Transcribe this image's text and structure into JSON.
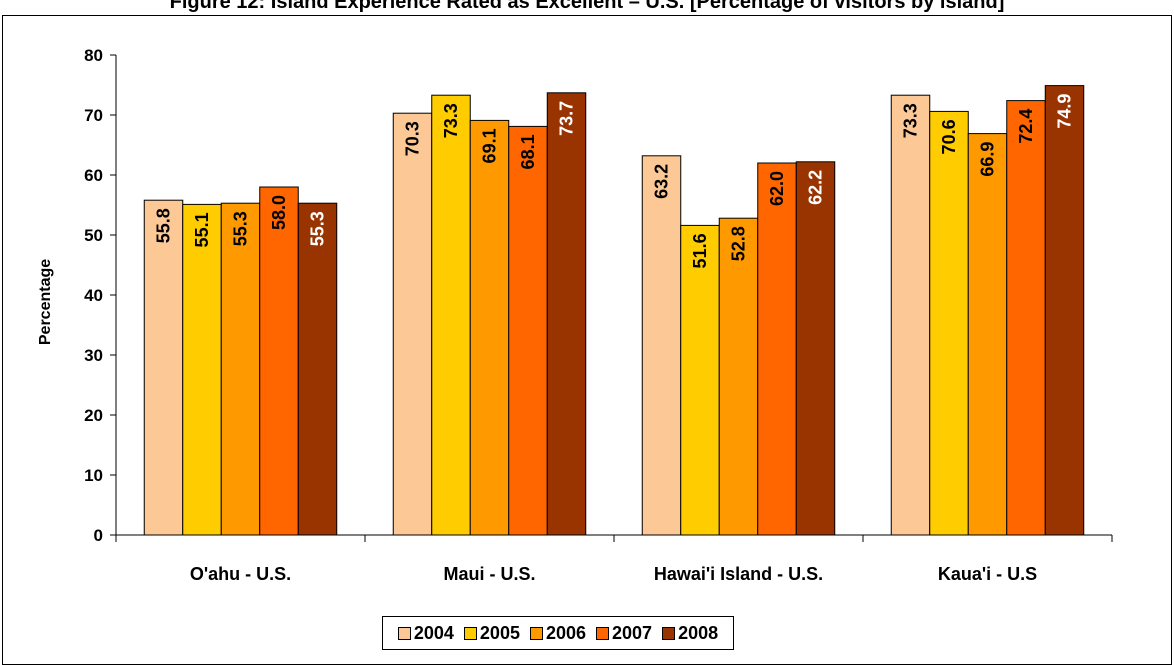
{
  "chart_data": {
    "type": "bar",
    "title": "Figure 12: Island Experience Rated as Excellent – U.S. [Percentage of visitors by island]",
    "ylabel": "Percentage",
    "xlabel": "",
    "ylim": [
      0,
      80
    ],
    "yticks": [
      "0",
      "10",
      "20",
      "30",
      "40",
      "50",
      "60",
      "70",
      "80"
    ],
    "grid": false,
    "legend_position": "bottom",
    "categories": [
      "O'ahu - U.S.",
      "Maui - U.S.",
      "Hawai'i Island - U.S.",
      "Kaua'i - U.S"
    ],
    "series": [
      {
        "name": "2004",
        "color": "#FBC896",
        "label_color": "#000000",
        "values": [
          55.8,
          70.3,
          63.2,
          73.3
        ],
        "labels": [
          "55.8",
          "70.3",
          "63.2",
          "73.3"
        ]
      },
      {
        "name": "2005",
        "color": "#FFCC00",
        "label_color": "#000000",
        "values": [
          55.1,
          73.3,
          51.6,
          70.6
        ],
        "labels": [
          "55.1",
          "73.3",
          "51.6",
          "70.6"
        ]
      },
      {
        "name": "2006",
        "color": "#FF9900",
        "label_color": "#000000",
        "values": [
          55.3,
          69.1,
          52.8,
          66.9
        ],
        "labels": [
          "55.3",
          "69.1",
          "52.8",
          "66.9"
        ]
      },
      {
        "name": "2007",
        "color": "#FF6600",
        "label_color": "#000000",
        "values": [
          58.0,
          68.1,
          62.0,
          72.4
        ],
        "labels": [
          "58.0",
          "68.1",
          "62.0",
          "72.4"
        ]
      },
      {
        "name": "2008",
        "color": "#993300",
        "label_color": "#FFFFFF",
        "values": [
          55.3,
          73.7,
          62.2,
          74.9
        ],
        "labels": [
          "55.3",
          "73.7",
          "62.2",
          "74.9"
        ]
      }
    ]
  }
}
